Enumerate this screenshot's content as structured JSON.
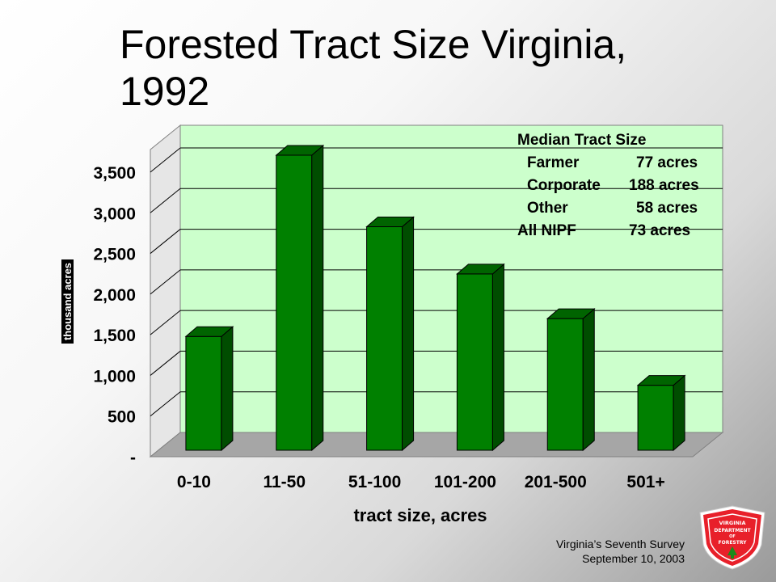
{
  "slide": {
    "title": "Forested Tract Size Virginia, 1992",
    "footer_line1": "Virginia’s Seventh Survey",
    "footer_line2": "September 10, 2003"
  },
  "median_box": {
    "heading": "Median Tract Size",
    "rows": [
      {
        "name": "Farmer",
        "value": "77 acres"
      },
      {
        "name": "Corporate",
        "value": "188 acres"
      },
      {
        "name": "Other",
        "value": "58 acres"
      },
      {
        "name": "All NIPF",
        "value": "73 acres"
      }
    ]
  },
  "logo": {
    "line1": "VIRGINIA",
    "line2": "DEPARTMENT",
    "line3": "OF",
    "line4": "FORESTRY",
    "color": "#e8202a"
  },
  "colors": {
    "bar_front": "#008000",
    "bar_side": "#004d00",
    "bar_top": "#006400",
    "plot_back": "#ccffcc",
    "floor": "#a6a6a6"
  },
  "chart_data": {
    "type": "bar",
    "title": "",
    "xlabel": "tract size, acres",
    "ylabel": "thousand acres",
    "categories": [
      "0-10",
      "11-50",
      "51-100",
      "101-200",
      "201-500",
      "501+"
    ],
    "values": [
      1300,
      3530,
      2650,
      2070,
      1520,
      700
    ],
    "ylim": [
      0,
      3500
    ],
    "yticks": [
      0,
      500,
      1000,
      1500,
      2000,
      2500,
      3000,
      3500
    ],
    "ytick_labels": [
      "-",
      "500",
      "1,000",
      "1,500",
      "2,000",
      "2,500",
      "3,000",
      "3,500"
    ],
    "grid": true,
    "legend": "none"
  }
}
